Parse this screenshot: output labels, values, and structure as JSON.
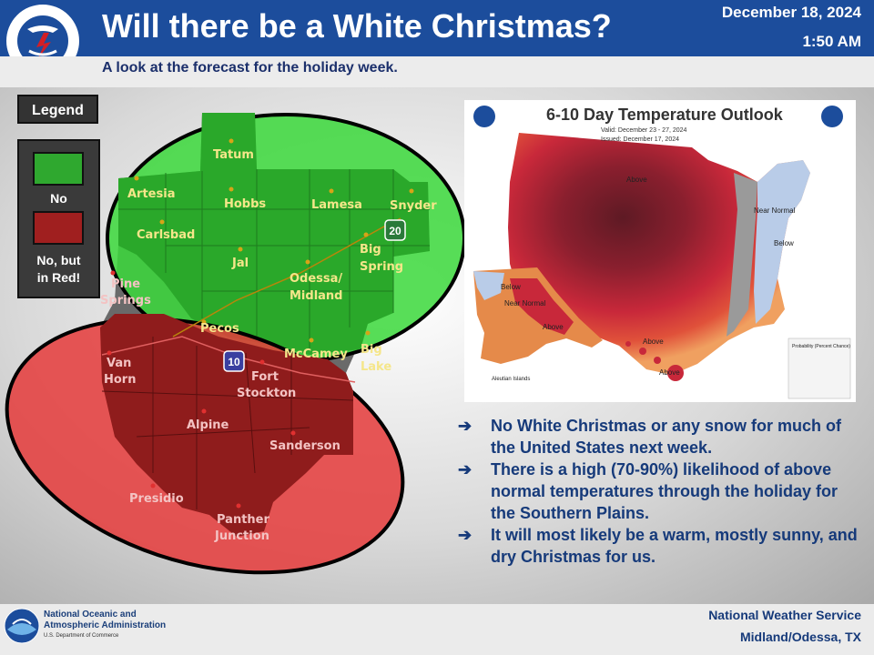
{
  "header": {
    "title": "Will there be a White Christmas?",
    "date": "December 18, 2024",
    "time": "1:50 AM",
    "subtitle": "A look at the forecast for the holiday week.",
    "logo_text": "NATIONAL WEATHER SERVICE"
  },
  "legend": {
    "title": "Legend",
    "items": [
      {
        "label": "No",
        "color": "#2fa82f"
      },
      {
        "label_line1": "No, but",
        "label_line2": "in Red!",
        "color": "#a01f1f"
      }
    ]
  },
  "map": {
    "green_cities": [
      {
        "name": "Tatum"
      },
      {
        "name": "Artesia"
      },
      {
        "name": "Hobbs"
      },
      {
        "name": "Lamesa"
      },
      {
        "name": "Snyder"
      },
      {
        "name": "Carlsbad"
      },
      {
        "name": "Jal"
      },
      {
        "name_line1": "Big",
        "name_line2": "Spring"
      },
      {
        "name_line1": "Odessa/",
        "name_line2": "Midland"
      },
      {
        "name": "Pecos"
      },
      {
        "name": "McCamey"
      },
      {
        "name_line1": "Big",
        "name_line2": "Lake"
      }
    ],
    "red_cities": [
      {
        "name_line1": "Pine",
        "name_line2": "Springs"
      },
      {
        "name_line1": "Van",
        "name_line2": "Horn"
      },
      {
        "name_line1": "Fort",
        "name_line2": "Stockton"
      },
      {
        "name": "Alpine"
      },
      {
        "name": "Sanderson"
      },
      {
        "name": "Presidio"
      },
      {
        "name_line1": "Panther",
        "name_line2": "Junction"
      }
    ],
    "highways": [
      "20",
      "10"
    ]
  },
  "outlook": {
    "title": "6-10 Day Temperature Outlook",
    "valid": "Valid: December 23 - 27, 2024",
    "issued": "Issued: December 17, 2024",
    "labels": [
      "Above",
      "Near Normal",
      "Below",
      "Below",
      "Near Normal",
      "Above",
      "Above",
      "Above",
      "Aleutian Islands"
    ],
    "legend_title": "Probability (Percent Chance)"
  },
  "bullets": [
    {
      "arrow": "➔",
      "text": "No White Christmas or any snow for much of the United States next week."
    },
    {
      "arrow": "➔",
      "text": "There is a high (70-90%) likelihood of above normal temperatures through the holiday for the Southern Plains."
    },
    {
      "arrow": "➔",
      "text": "It will most likely be a warm, mostly sunny, and dry Christmas for us."
    }
  ],
  "footer": {
    "noaa_line1": "National Oceanic and",
    "noaa_line2": "Atmospheric Administration",
    "noaa_dept": "U.S. Department of Commerce",
    "nws": "National Weather Service",
    "office": "Midland/Odessa, TX"
  },
  "colors": {
    "header_blue": "#1c4d9c",
    "green": "#2fa82f",
    "red": "#a01f1f",
    "text_blue": "#163a7a"
  }
}
